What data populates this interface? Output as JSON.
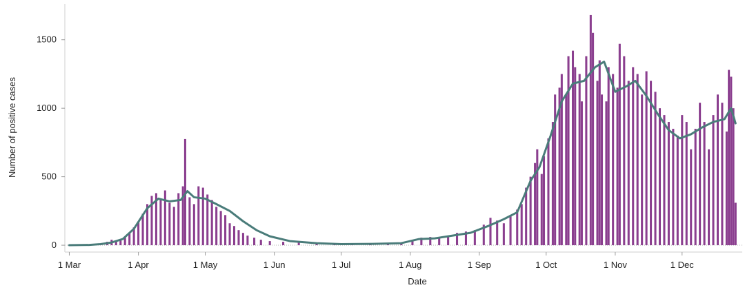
{
  "chart_data": {
    "type": "bar",
    "xlabel": "Date",
    "ylabel": "Number of positive cases",
    "x_start": "2020-02-28",
    "x_end": "2020-12-28",
    "ylim": [
      -50,
      1760
    ],
    "y_ticks": [
      0,
      500,
      1000,
      1500
    ],
    "x_ticks": [
      {
        "label": "1 Mar",
        "date": "2020-03-01"
      },
      {
        "label": "1 Apr",
        "date": "2020-04-01"
      },
      {
        "label": "1 May",
        "date": "2020-05-01"
      },
      {
        "label": "1 Jun",
        "date": "2020-06-01"
      },
      {
        "label": "1 Jul",
        "date": "2020-07-01"
      },
      {
        "label": "1 Aug",
        "date": "2020-08-01"
      },
      {
        "label": "1 Sep",
        "date": "2020-09-01"
      },
      {
        "label": "1 Oct",
        "date": "2020-10-01"
      },
      {
        "label": "1 Nov",
        "date": "2020-11-01"
      },
      {
        "label": "1 Dec",
        "date": "2020-12-01"
      }
    ],
    "grid": false,
    "series": [
      {
        "kind": "bar",
        "color": "#8b3f8f",
        "values": [
          {
            "date": "2020-03-08",
            "y": 2
          },
          {
            "date": "2020-03-12",
            "y": 6
          },
          {
            "date": "2020-03-15",
            "y": 12
          },
          {
            "date": "2020-03-18",
            "y": 25
          },
          {
            "date": "2020-03-20",
            "y": 40
          },
          {
            "date": "2020-03-22",
            "y": 30
          },
          {
            "date": "2020-03-24",
            "y": 45
          },
          {
            "date": "2020-03-26",
            "y": 60
          },
          {
            "date": "2020-03-28",
            "y": 90
          },
          {
            "date": "2020-03-30",
            "y": 130
          },
          {
            "date": "2020-04-01",
            "y": 170
          },
          {
            "date": "2020-04-03",
            "y": 230
          },
          {
            "date": "2020-04-05",
            "y": 300
          },
          {
            "date": "2020-04-07",
            "y": 360
          },
          {
            "date": "2020-04-09",
            "y": 380
          },
          {
            "date": "2020-04-11",
            "y": 330
          },
          {
            "date": "2020-04-13",
            "y": 400
          },
          {
            "date": "2020-04-15",
            "y": 310
          },
          {
            "date": "2020-04-17",
            "y": 280
          },
          {
            "date": "2020-04-19",
            "y": 380
          },
          {
            "date": "2020-04-21",
            "y": 430
          },
          {
            "date": "2020-04-22",
            "y": 775
          },
          {
            "date": "2020-04-24",
            "y": 350
          },
          {
            "date": "2020-04-26",
            "y": 300
          },
          {
            "date": "2020-04-28",
            "y": 430
          },
          {
            "date": "2020-04-30",
            "y": 420
          },
          {
            "date": "2020-05-02",
            "y": 370
          },
          {
            "date": "2020-05-04",
            "y": 330
          },
          {
            "date": "2020-05-06",
            "y": 280
          },
          {
            "date": "2020-05-08",
            "y": 250
          },
          {
            "date": "2020-05-10",
            "y": 220
          },
          {
            "date": "2020-05-12",
            "y": 160
          },
          {
            "date": "2020-05-14",
            "y": 140
          },
          {
            "date": "2020-05-16",
            "y": 110
          },
          {
            "date": "2020-05-18",
            "y": 90
          },
          {
            "date": "2020-05-20",
            "y": 70
          },
          {
            "date": "2020-05-23",
            "y": 55
          },
          {
            "date": "2020-05-26",
            "y": 40
          },
          {
            "date": "2020-05-30",
            "y": 30
          },
          {
            "date": "2020-06-05",
            "y": 25
          },
          {
            "date": "2020-06-12",
            "y": 20
          },
          {
            "date": "2020-06-20",
            "y": 15
          },
          {
            "date": "2020-06-28",
            "y": 12
          },
          {
            "date": "2020-07-06",
            "y": 10
          },
          {
            "date": "2020-07-14",
            "y": 12
          },
          {
            "date": "2020-07-22",
            "y": 15
          },
          {
            "date": "2020-07-28",
            "y": 20
          },
          {
            "date": "2020-08-02",
            "y": 40
          },
          {
            "date": "2020-08-06",
            "y": 55
          },
          {
            "date": "2020-08-10",
            "y": 60
          },
          {
            "date": "2020-08-14",
            "y": 50
          },
          {
            "date": "2020-08-18",
            "y": 70
          },
          {
            "date": "2020-08-22",
            "y": 90
          },
          {
            "date": "2020-08-26",
            "y": 100
          },
          {
            "date": "2020-08-30",
            "y": 110
          },
          {
            "date": "2020-09-03",
            "y": 150
          },
          {
            "date": "2020-09-06",
            "y": 200
          },
          {
            "date": "2020-09-09",
            "y": 180
          },
          {
            "date": "2020-09-12",
            "y": 160
          },
          {
            "date": "2020-09-15",
            "y": 220
          },
          {
            "date": "2020-09-18",
            "y": 260
          },
          {
            "date": "2020-09-20",
            "y": 300
          },
          {
            "date": "2020-09-22",
            "y": 420
          },
          {
            "date": "2020-09-24",
            "y": 500
          },
          {
            "date": "2020-09-26",
            "y": 600
          },
          {
            "date": "2020-09-27",
            "y": 700
          },
          {
            "date": "2020-09-29",
            "y": 520
          },
          {
            "date": "2020-09-30",
            "y": 650
          },
          {
            "date": "2020-10-02",
            "y": 780
          },
          {
            "date": "2020-10-04",
            "y": 900
          },
          {
            "date": "2020-10-05",
            "y": 1100
          },
          {
            "date": "2020-10-07",
            "y": 1150
          },
          {
            "date": "2020-10-08",
            "y": 1250
          },
          {
            "date": "2020-10-10",
            "y": 1100
          },
          {
            "date": "2020-10-11",
            "y": 1380
          },
          {
            "date": "2020-10-13",
            "y": 1420
          },
          {
            "date": "2020-10-14",
            "y": 1300
          },
          {
            "date": "2020-10-16",
            "y": 1250
          },
          {
            "date": "2020-10-17",
            "y": 1050
          },
          {
            "date": "2020-10-19",
            "y": 1380
          },
          {
            "date": "2020-10-21",
            "y": 1680
          },
          {
            "date": "2020-10-22",
            "y": 1550
          },
          {
            "date": "2020-10-24",
            "y": 1200
          },
          {
            "date": "2020-10-25",
            "y": 1350
          },
          {
            "date": "2020-10-26",
            "y": 1100
          },
          {
            "date": "2020-10-28",
            "y": 1050
          },
          {
            "date": "2020-10-29",
            "y": 1300
          },
          {
            "date": "2020-10-31",
            "y": 1250
          },
          {
            "date": "2020-11-02",
            "y": 1150
          },
          {
            "date": "2020-11-03",
            "y": 1470
          },
          {
            "date": "2020-11-05",
            "y": 1380
          },
          {
            "date": "2020-11-07",
            "y": 1200
          },
          {
            "date": "2020-11-09",
            "y": 1300
          },
          {
            "date": "2020-11-11",
            "y": 1250
          },
          {
            "date": "2020-11-13",
            "y": 1100
          },
          {
            "date": "2020-11-15",
            "y": 1270
          },
          {
            "date": "2020-11-17",
            "y": 1200
          },
          {
            "date": "2020-11-19",
            "y": 1120
          },
          {
            "date": "2020-11-21",
            "y": 1000
          },
          {
            "date": "2020-11-23",
            "y": 950
          },
          {
            "date": "2020-11-25",
            "y": 900
          },
          {
            "date": "2020-11-27",
            "y": 850
          },
          {
            "date": "2020-11-29",
            "y": 800
          },
          {
            "date": "2020-12-01",
            "y": 950
          },
          {
            "date": "2020-12-03",
            "y": 900
          },
          {
            "date": "2020-12-05",
            "y": 700
          },
          {
            "date": "2020-12-07",
            "y": 850
          },
          {
            "date": "2020-12-09",
            "y": 1040
          },
          {
            "date": "2020-12-11",
            "y": 900
          },
          {
            "date": "2020-12-13",
            "y": 700
          },
          {
            "date": "2020-12-15",
            "y": 950
          },
          {
            "date": "2020-12-17",
            "y": 1100
          },
          {
            "date": "2020-12-19",
            "y": 1040
          },
          {
            "date": "2020-12-21",
            "y": 830
          },
          {
            "date": "2020-12-22",
            "y": 1280
          },
          {
            "date": "2020-12-23",
            "y": 1230
          },
          {
            "date": "2020-12-24",
            "y": 1000
          },
          {
            "date": "2020-12-25",
            "y": 310
          }
        ]
      },
      {
        "kind": "line",
        "color": "#4a7c7a",
        "values": [
          {
            "date": "2020-03-01",
            "y": 0
          },
          {
            "date": "2020-03-10",
            "y": 2
          },
          {
            "date": "2020-03-15",
            "y": 8
          },
          {
            "date": "2020-03-20",
            "y": 20
          },
          {
            "date": "2020-03-25",
            "y": 45
          },
          {
            "date": "2020-03-30",
            "y": 120
          },
          {
            "date": "2020-04-05",
            "y": 270
          },
          {
            "date": "2020-04-10",
            "y": 340
          },
          {
            "date": "2020-04-15",
            "y": 320
          },
          {
            "date": "2020-04-20",
            "y": 330
          },
          {
            "date": "2020-04-23",
            "y": 395
          },
          {
            "date": "2020-04-26",
            "y": 350
          },
          {
            "date": "2020-05-01",
            "y": 340
          },
          {
            "date": "2020-05-06",
            "y": 300
          },
          {
            "date": "2020-05-12",
            "y": 250
          },
          {
            "date": "2020-05-18",
            "y": 175
          },
          {
            "date": "2020-05-24",
            "y": 110
          },
          {
            "date": "2020-05-30",
            "y": 65
          },
          {
            "date": "2020-06-08",
            "y": 30
          },
          {
            "date": "2020-06-20",
            "y": 15
          },
          {
            "date": "2020-07-01",
            "y": 8
          },
          {
            "date": "2020-07-15",
            "y": 10
          },
          {
            "date": "2020-07-28",
            "y": 15
          },
          {
            "date": "2020-08-05",
            "y": 45
          },
          {
            "date": "2020-08-12",
            "y": 50
          },
          {
            "date": "2020-08-20",
            "y": 70
          },
          {
            "date": "2020-08-28",
            "y": 90
          },
          {
            "date": "2020-09-05",
            "y": 140
          },
          {
            "date": "2020-09-12",
            "y": 190
          },
          {
            "date": "2020-09-18",
            "y": 240
          },
          {
            "date": "2020-09-24",
            "y": 470
          },
          {
            "date": "2020-09-28",
            "y": 570
          },
          {
            "date": "2020-10-03",
            "y": 800
          },
          {
            "date": "2020-10-08",
            "y": 1050
          },
          {
            "date": "2020-10-13",
            "y": 1180
          },
          {
            "date": "2020-10-18",
            "y": 1200
          },
          {
            "date": "2020-10-23",
            "y": 1300
          },
          {
            "date": "2020-10-27",
            "y": 1340
          },
          {
            "date": "2020-11-01",
            "y": 1120
          },
          {
            "date": "2020-11-06",
            "y": 1160
          },
          {
            "date": "2020-11-10",
            "y": 1200
          },
          {
            "date": "2020-11-15",
            "y": 1090
          },
          {
            "date": "2020-11-20",
            "y": 960
          },
          {
            "date": "2020-11-25",
            "y": 840
          },
          {
            "date": "2020-11-30",
            "y": 780
          },
          {
            "date": "2020-12-05",
            "y": 810
          },
          {
            "date": "2020-12-10",
            "y": 860
          },
          {
            "date": "2020-12-15",
            "y": 900
          },
          {
            "date": "2020-12-20",
            "y": 920
          },
          {
            "date": "2020-12-23",
            "y": 1000
          },
          {
            "date": "2020-12-25",
            "y": 890
          }
        ]
      }
    ]
  }
}
